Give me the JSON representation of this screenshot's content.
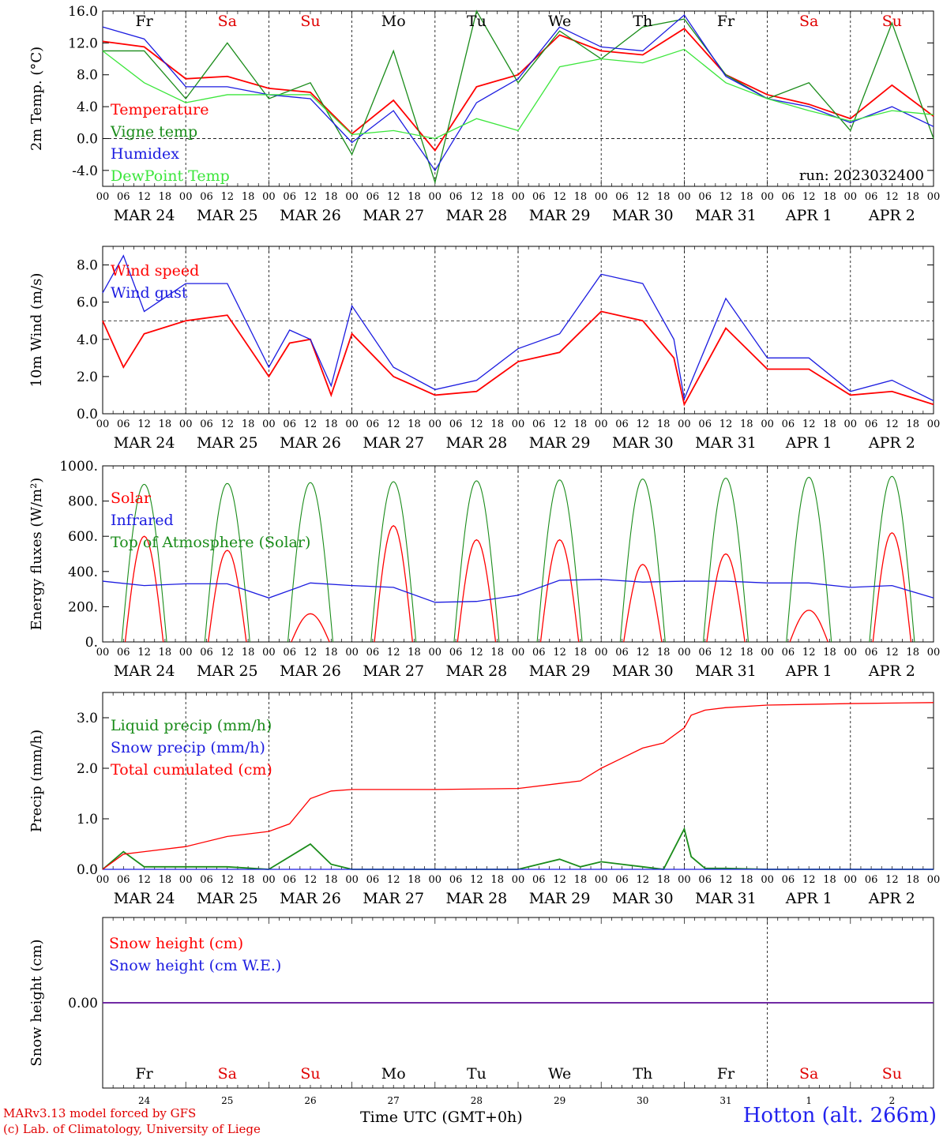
{
  "run_label": "run: 2023032400",
  "day_letters": [
    {
      "text": "Fr",
      "color": "#000000"
    },
    {
      "text": "Sa",
      "color": "#e00000"
    },
    {
      "text": "Su",
      "color": "#e00000"
    },
    {
      "text": "Mo",
      "color": "#000000"
    },
    {
      "text": "Tu",
      "color": "#000000"
    },
    {
      "text": "We",
      "color": "#000000"
    },
    {
      "text": "Th",
      "color": "#000000"
    },
    {
      "text": "Fr",
      "color": "#000000"
    },
    {
      "text": "Sa",
      "color": "#e00000"
    },
    {
      "text": "Su",
      "color": "#e00000"
    }
  ],
  "date_labels": [
    "MAR 24",
    "MAR 25",
    "MAR 26",
    "MAR 27",
    "MAR 28",
    "MAR 29",
    "MAR 30",
    "MAR 31",
    "APR  1",
    "APR  2"
  ],
  "day_numbers": [
    "24",
    "25",
    "26",
    "27",
    "28",
    "29",
    "30",
    "31",
    "1",
    "2"
  ],
  "hour_ticks": [
    "00",
    "06",
    "12",
    "18"
  ],
  "footer": {
    "credit_line1": "MARv3.13 model forced by GFS",
    "credit_line2": "(c) Lab. of Climatology, University of Liege",
    "time_label": "Time UTC (GMT+0h)",
    "location": "Hotton (alt. 266m)"
  },
  "chart_data": [
    {
      "type": "line",
      "ylabel": "2m Temp. (°C)",
      "ylim": [
        -6,
        16
      ],
      "yticks": [
        "16.0",
        "12.0",
        "8.0",
        "4.0",
        "0.0",
        "-4.0"
      ],
      "ytick_values": [
        16,
        12,
        8,
        4,
        0,
        -4
      ],
      "reference_line": 0,
      "x_unit": "hours since MAR 24 00 UTC",
      "series": [
        {
          "name": "Temperature",
          "color": "#ff0000",
          "x": [
            0,
            12,
            24,
            36,
            48,
            60,
            72,
            84,
            96,
            108,
            120,
            132,
            144,
            156,
            168,
            180,
            192,
            204,
            216,
            228,
            240
          ],
          "values": [
            12.2,
            11.5,
            7.5,
            7.8,
            6.3,
            5.8,
            0.6,
            4.8,
            -1.5,
            6.5,
            8.0,
            13.0,
            11.0,
            10.5,
            13.8,
            8.0,
            5.5,
            4.3,
            2.5,
            6.7,
            2.8
          ]
        },
        {
          "name": "Vigne temp",
          "color": "#1a8c1a",
          "x": [
            0,
            12,
            24,
            36,
            48,
            60,
            72,
            84,
            96,
            108,
            120,
            132,
            144,
            156,
            168,
            180,
            192,
            204,
            216,
            228,
            240
          ],
          "values": [
            11.0,
            11.0,
            5.0,
            12.0,
            5.0,
            7.0,
            -2.0,
            11.0,
            -5.5,
            16.0,
            7.0,
            13.5,
            10.0,
            14.0,
            15.0,
            8.0,
            5.0,
            7.0,
            1.0,
            14.5,
            0.0
          ]
        },
        {
          "name": "Humidex",
          "color": "#1c1ce0",
          "x": [
            0,
            12,
            24,
            36,
            48,
            60,
            72,
            84,
            96,
            108,
            120,
            132,
            144,
            156,
            168,
            180,
            192,
            204,
            216,
            228,
            240
          ],
          "values": [
            14.0,
            12.5,
            6.5,
            6.5,
            5.5,
            5.0,
            -0.5,
            3.5,
            -4.0,
            4.5,
            7.5,
            14.0,
            11.5,
            11.0,
            15.5,
            7.8,
            5.0,
            4.0,
            2.0,
            4.0,
            1.5
          ]
        },
        {
          "name": "DewPoint Temp",
          "color": "#3ce63c",
          "x": [
            0,
            12,
            24,
            36,
            48,
            60,
            72,
            84,
            96,
            108,
            120,
            132,
            144,
            156,
            168,
            180,
            192,
            204,
            216,
            228,
            240
          ],
          "values": [
            11.0,
            7.0,
            4.5,
            5.5,
            5.5,
            5.5,
            0.5,
            1.0,
            0.0,
            2.5,
            1.0,
            9.0,
            10.0,
            9.5,
            11.2,
            7.0,
            5.0,
            3.5,
            2.2,
            3.5,
            3.0
          ]
        }
      ]
    },
    {
      "type": "line",
      "ylabel": "10m Wind (m/s)",
      "ylim": [
        0,
        9
      ],
      "yticks": [
        "8.0",
        "6.0",
        "4.0",
        "2.0",
        "0.0"
      ],
      "ytick_values": [
        8,
        6,
        4,
        2,
        0
      ],
      "reference_line": 5,
      "x_unit": "hours since MAR 24 00 UTC",
      "series": [
        {
          "name": "Wind speed",
          "color": "#ff0000",
          "x": [
            0,
            6,
            12,
            24,
            36,
            48,
            54,
            60,
            66,
            72,
            84,
            96,
            108,
            120,
            132,
            144,
            156,
            165,
            168,
            180,
            192,
            204,
            216,
            228,
            240
          ],
          "values": [
            5.0,
            2.5,
            4.3,
            5.0,
            5.3,
            2.0,
            3.8,
            4.0,
            1.0,
            4.3,
            2.0,
            1.0,
            1.2,
            2.8,
            3.3,
            5.5,
            5.0,
            3.0,
            0.5,
            4.6,
            2.4,
            2.4,
            1.0,
            1.2,
            0.5
          ]
        },
        {
          "name": "Wind gust",
          "color": "#1c1ce0",
          "x": [
            0,
            6,
            12,
            24,
            36,
            48,
            54,
            60,
            66,
            72,
            84,
            96,
            108,
            120,
            132,
            144,
            156,
            165,
            168,
            180,
            192,
            204,
            216,
            228,
            240
          ],
          "values": [
            6.5,
            8.5,
            5.5,
            7.0,
            7.0,
            2.5,
            4.5,
            4.0,
            1.5,
            5.8,
            2.5,
            1.3,
            1.8,
            3.5,
            4.3,
            7.5,
            7.0,
            4.0,
            0.8,
            6.2,
            3.0,
            3.0,
            1.2,
            1.8,
            0.7
          ]
        }
      ]
    },
    {
      "type": "line",
      "ylabel": "Energy fluxes (W/m²)",
      "ylim": [
        0,
        1000
      ],
      "yticks": [
        "1000.",
        "800.",
        "600.",
        "400.",
        "200.",
        "0."
      ],
      "ytick_values": [
        1000,
        800,
        600,
        400,
        200,
        0
      ],
      "x_unit": "hours since MAR 24 00 UTC",
      "toa_daily_peak": [
        895,
        900,
        905,
        910,
        915,
        920,
        925,
        930,
        935,
        940
      ],
      "series": [
        {
          "name": "Solar",
          "color": "#ff0000",
          "x": [
            12,
            36,
            60,
            84,
            108,
            132,
            156,
            180,
            204,
            228
          ],
          "values": [
            600,
            520,
            160,
            660,
            580,
            580,
            440,
            500,
            180,
            620
          ]
        },
        {
          "name": "Infrared",
          "color": "#1c1ce0",
          "x": [
            0,
            12,
            24,
            36,
            48,
            60,
            72,
            84,
            96,
            108,
            120,
            132,
            144,
            156,
            168,
            180,
            192,
            204,
            216,
            228,
            240
          ],
          "values": [
            345,
            320,
            330,
            330,
            250,
            335,
            320,
            310,
            225,
            230,
            265,
            350,
            355,
            340,
            345,
            345,
            335,
            335,
            310,
            320,
            250
          ]
        },
        {
          "name": "Top of Atmosphere (Solar)",
          "color": "#1a8c1a",
          "x": [],
          "values": []
        }
      ]
    },
    {
      "type": "line",
      "ylabel": "Precip (mm/h)",
      "ylim": [
        0,
        3.5
      ],
      "yticks": [
        "3.0",
        "2.0",
        "1.0",
        "0.0"
      ],
      "ytick_values": [
        3,
        2,
        1,
        0
      ],
      "x_unit": "hours since MAR 24 00 UTC",
      "series": [
        {
          "name": "Liquid precip (mm/h)",
          "color": "#1a8c1a",
          "x": [
            0,
            6,
            12,
            24,
            36,
            48,
            54,
            60,
            66,
            72,
            96,
            120,
            132,
            138,
            144,
            150,
            156,
            162,
            168,
            170,
            174,
            180,
            192,
            240
          ],
          "values": [
            0.0,
            0.35,
            0.05,
            0.05,
            0.05,
            0.0,
            0.25,
            0.5,
            0.1,
            0.0,
            0.0,
            0.0,
            0.2,
            0.05,
            0.15,
            0.1,
            0.05,
            0.0,
            0.8,
            0.25,
            0.02,
            0.02,
            0.0,
            0.0
          ]
        },
        {
          "name": "Snow precip (mm/h)",
          "color": "#1c1ce0",
          "x": [
            0,
            240
          ],
          "values": [
            0.0,
            0.0
          ]
        },
        {
          "name": "Total cumulated (cm)",
          "color": "#ff0000",
          "x": [
            0,
            6,
            12,
            24,
            36,
            48,
            54,
            60,
            66,
            72,
            96,
            120,
            132,
            138,
            144,
            150,
            156,
            162,
            168,
            170,
            174,
            180,
            192,
            216,
            240
          ],
          "values": [
            0.0,
            0.3,
            0.35,
            0.45,
            0.65,
            0.75,
            0.9,
            1.4,
            1.55,
            1.58,
            1.58,
            1.6,
            1.7,
            1.75,
            2.0,
            2.2,
            2.4,
            2.5,
            2.8,
            3.05,
            3.15,
            3.2,
            3.25,
            3.28,
            3.3
          ]
        }
      ]
    },
    {
      "type": "line",
      "ylabel": "Snow height (cm)",
      "ylim": [
        -1,
        1
      ],
      "yticks": [
        "0.00"
      ],
      "ytick_values": [
        0
      ],
      "x_unit": "hours since MAR 24 00 UTC",
      "series": [
        {
          "name": "Snow height (cm)",
          "color": "#ff0000",
          "x": [
            0,
            240
          ],
          "values": [
            0.0,
            0.0
          ]
        },
        {
          "name": "Snow height (cm W.E.)",
          "color": "#1c1ce0",
          "x": [
            0,
            240
          ],
          "values": [
            0.0,
            0.0
          ]
        }
      ]
    }
  ]
}
